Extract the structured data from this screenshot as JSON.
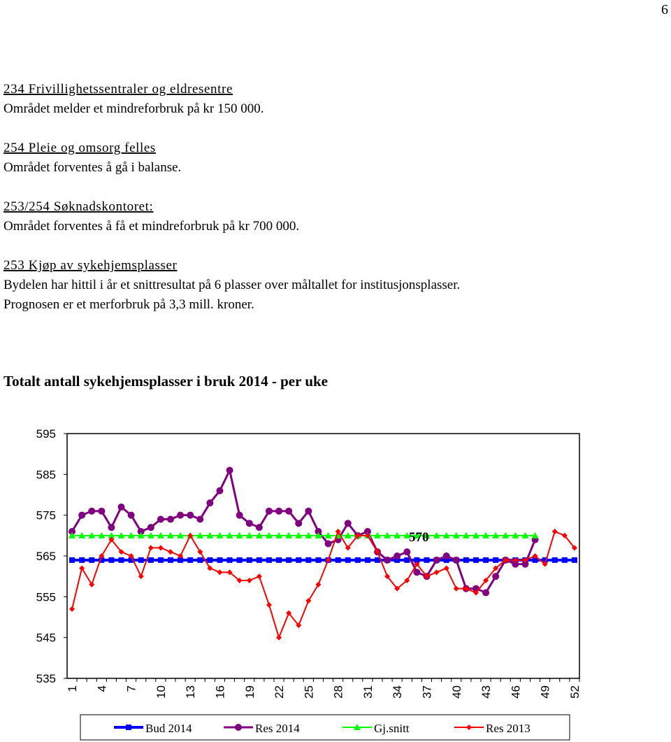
{
  "page_number": "6",
  "sections": [
    {
      "heading": "234 Frivillighetssentraler og eldresentre",
      "lines": [
        "Området melder et mindreforbruk på kr 150 000."
      ]
    },
    {
      "heading": "254 Pleie og omsorg felles",
      "lines": [
        "Området forventes å gå i balanse."
      ]
    },
    {
      "heading": "253/254 Søknadskontoret:",
      "lines": [
        "Området forventes å få et mindreforbruk på kr 700 000."
      ]
    },
    {
      "heading": "253 Kjøp av sykehjemsplasser",
      "lines": [
        "Bydelen har hittil i år et snittresultat på 6 plasser over måltallet for institusjonsplasser.",
        "Prognosen er et merforbruk på 3,3 mill. kroner."
      ]
    }
  ],
  "chart_data": {
    "type": "line",
    "title": "Totalt antall sykehjemsplasser i bruk 2014 - per uke",
    "x": [
      1,
      2,
      3,
      4,
      5,
      6,
      7,
      8,
      9,
      10,
      11,
      12,
      13,
      14,
      15,
      16,
      17,
      18,
      19,
      20,
      21,
      22,
      23,
      24,
      25,
      26,
      27,
      28,
      29,
      30,
      31,
      32,
      33,
      34,
      35,
      36,
      37,
      38,
      39,
      40,
      41,
      42,
      43,
      44,
      45,
      46,
      47,
      48,
      49,
      50,
      51,
      52
    ],
    "xlim": [
      0.5,
      52.5
    ],
    "xticks": [
      1,
      4,
      7,
      10,
      13,
      16,
      19,
      22,
      25,
      28,
      31,
      34,
      37,
      40,
      43,
      46,
      49,
      52
    ],
    "ylim": [
      535,
      595
    ],
    "yticks": [
      535,
      545,
      555,
      565,
      575,
      585,
      595
    ],
    "annotation": "570",
    "series": [
      {
        "name": "Bud 2014",
        "color": "#0000ff",
        "marker": "square",
        "values": [
          564,
          564,
          564,
          564,
          564,
          564,
          564,
          564,
          564,
          564,
          564,
          564,
          564,
          564,
          564,
          564,
          564,
          564,
          564,
          564,
          564,
          564,
          564,
          564,
          564,
          564,
          564,
          564,
          564,
          564,
          564,
          564,
          564,
          564,
          564,
          564,
          564,
          564,
          564,
          564,
          564,
          564,
          564,
          564,
          564,
          564,
          564,
          564,
          564,
          564,
          564,
          564
        ]
      },
      {
        "name": "Res 2014",
        "color": "#800080",
        "marker": "circle",
        "values": [
          571,
          575,
          576,
          576,
          572,
          577,
          575,
          571,
          572,
          574,
          574,
          575,
          575,
          574,
          578,
          581,
          586,
          575,
          573,
          572,
          576,
          576,
          576,
          573,
          576,
          571,
          568,
          569,
          573,
          570,
          571,
          566,
          564,
          565,
          566,
          561,
          560,
          564,
          565,
          564,
          557,
          557,
          556,
          560,
          564,
          563,
          563,
          569,
          null,
          null,
          null,
          null
        ]
      },
      {
        "name": "Gj.snitt",
        "color": "#00ff00",
        "marker": "triangle",
        "values": [
          570,
          570,
          570,
          570,
          570,
          570,
          570,
          570,
          570,
          570,
          570,
          570,
          570,
          570,
          570,
          570,
          570,
          570,
          570,
          570,
          570,
          570,
          570,
          570,
          570,
          570,
          570,
          570,
          570,
          570,
          570,
          570,
          570,
          570,
          570,
          570,
          570,
          570,
          570,
          570,
          570,
          570,
          570,
          570,
          570,
          570,
          570,
          570,
          null,
          null,
          null,
          null
        ]
      },
      {
        "name": "Res 2013",
        "color": "#ff0000",
        "marker": "diamond",
        "values": [
          552,
          562,
          558,
          565,
          569,
          566,
          565,
          560,
          567,
          567,
          566,
          565,
          570,
          566,
          562,
          561,
          561,
          559,
          559,
          560,
          553,
          545,
          551,
          548,
          554,
          558,
          564,
          571,
          567,
          570,
          570,
          566,
          560,
          557,
          559,
          563,
          560,
          561,
          562,
          557,
          557,
          556,
          559,
          562,
          564,
          564,
          564,
          565,
          563,
          571,
          570,
          567
        ]
      }
    ]
  }
}
